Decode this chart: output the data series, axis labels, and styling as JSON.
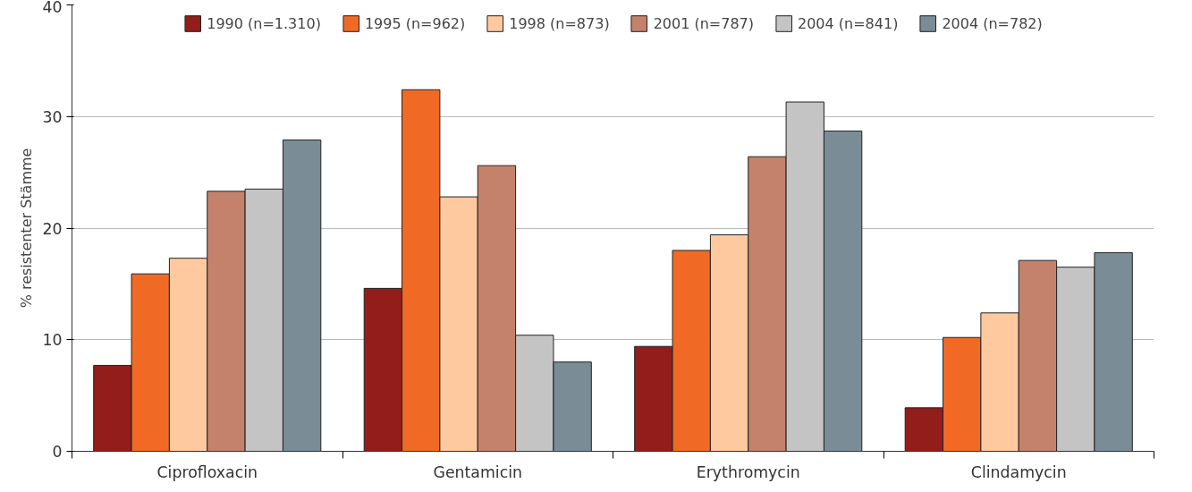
{
  "chart_data": {
    "type": "bar",
    "ylabel": "% resistenter Stämme",
    "categories": [
      "Ciprofloxacin",
      "Gentamicin",
      "Erythromycin",
      "Clindamycin"
    ],
    "series": [
      {
        "name": "1990 (n=1.310)",
        "color": "#921d1b",
        "values": [
          7.7,
          14.6,
          9.4,
          3.9
        ]
      },
      {
        "name": "1995 (n=962)",
        "color": "#f06a25",
        "values": [
          15.9,
          32.4,
          18.0,
          10.2
        ]
      },
      {
        "name": "1998 (n=873)",
        "color": "#ffc9a0",
        "values": [
          17.3,
          22.8,
          19.4,
          12.4
        ]
      },
      {
        "name": "2001 (n=787)",
        "color": "#c4826c",
        "values": [
          23.3,
          25.6,
          26.4,
          17.1
        ]
      },
      {
        "name": "2004 (n=841)",
        "color": "#c4c4c4",
        "values": [
          23.5,
          10.4,
          31.3,
          16.5
        ]
      },
      {
        "name": "2004 (n=782)",
        "color": "#7a8c96",
        "values": [
          27.9,
          8.0,
          28.7,
          17.8
        ]
      }
    ],
    "ylim": [
      0,
      40
    ],
    "yticks": [
      0,
      10,
      20,
      30,
      40
    ],
    "grid": "y",
    "legend": "top"
  }
}
